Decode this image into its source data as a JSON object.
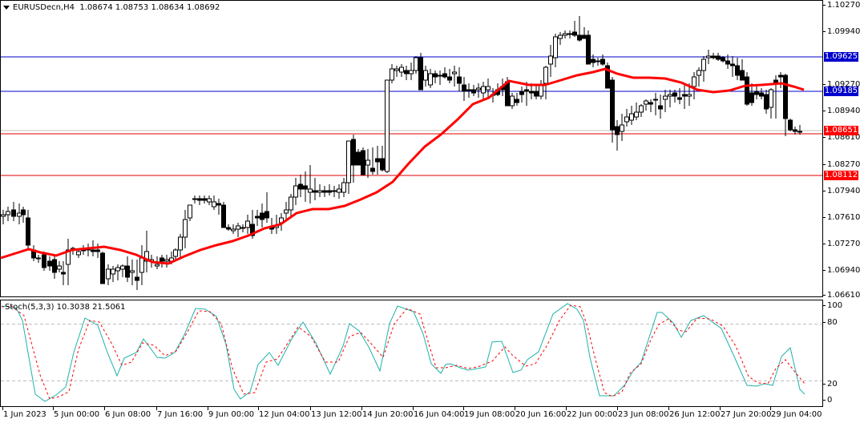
{
  "chart_header": {
    "symbol_timeframe": "EURUSDecn,H4",
    "ohlc": "1.08674 1.08753 1.08634 1.08692",
    "dropdown_icon": "triangle-down"
  },
  "stoch_header": {
    "label": "Stoch(5,3,3) 10.3038 21.5061"
  },
  "price_axis": {
    "ticks": [
      "1.10270",
      "1.09940",
      "1.09270",
      "1.08940",
      "1.08610",
      "1.08270",
      "1.07940",
      "1.07610",
      "1.07270",
      "1.06940",
      "1.06610"
    ],
    "levels": [
      {
        "label": "1.09625",
        "color": "#0000CC",
        "line_color": "#0000CC"
      },
      {
        "label": "1.09185",
        "color": "#0000CC",
        "line_color": "#0000CC"
      },
      {
        "label": "1.08651",
        "color": "#FF0000",
        "line_color": "#C0C0C0"
      },
      {
        "label": "1.08112",
        "color": "#FF0000",
        "line_color": "#E00000"
      }
    ],
    "hline_1_08611": {
      "color": "#E00000"
    }
  },
  "stoch_axis": {
    "ticks": [
      "100",
      "80",
      "20",
      "0"
    ]
  },
  "time_axis": {
    "labels": [
      "1 Jun 2023",
      "5 Jun 00:00",
      "6 Jun 08:00",
      "7 Jun 16:00",
      "9 Jun 00:00",
      "12 Jun 04:00",
      "13 Jun 12:00",
      "14 Jun 20:00",
      "16 Jun 04:00",
      "19 Jun 08:00",
      "20 Jun 16:00",
      "22 Jun 00:00",
      "23 Jun 08:00",
      "26 Jun 12:00",
      "27 Jun 20:00",
      "29 Jun 04:00"
    ]
  },
  "colors": {
    "ma_line": "#FF0000",
    "stoch_main": "#20B2AA",
    "stoch_signal": "#FF0000",
    "level_blue": "#0000CC",
    "level_red": "#FF0000",
    "candle_bull": "#FFFFFF",
    "candle_bear": "#000000"
  },
  "chart_data": {
    "type": "candlestick",
    "title": "EURUSDecn,H4",
    "xlabel": "",
    "ylabel": "",
    "ylim": [
      1.0661,
      1.1027
    ],
    "grid": false,
    "indicators": [
      "Moving Average (red)",
      "Stochastic(5,3,3)"
    ],
    "horizontal_levels": [
      1.09625,
      1.09185,
      1.08651,
      1.08112
    ],
    "current_bar": {
      "open": 1.08674,
      "high": 1.08753,
      "low": 1.08634,
      "close": 1.08692
    },
    "stochastic": {
      "main_last": 10.3038,
      "signal_last": 21.5061,
      "levels": [
        20,
        80
      ],
      "range": [
        0,
        100
      ]
    }
  }
}
